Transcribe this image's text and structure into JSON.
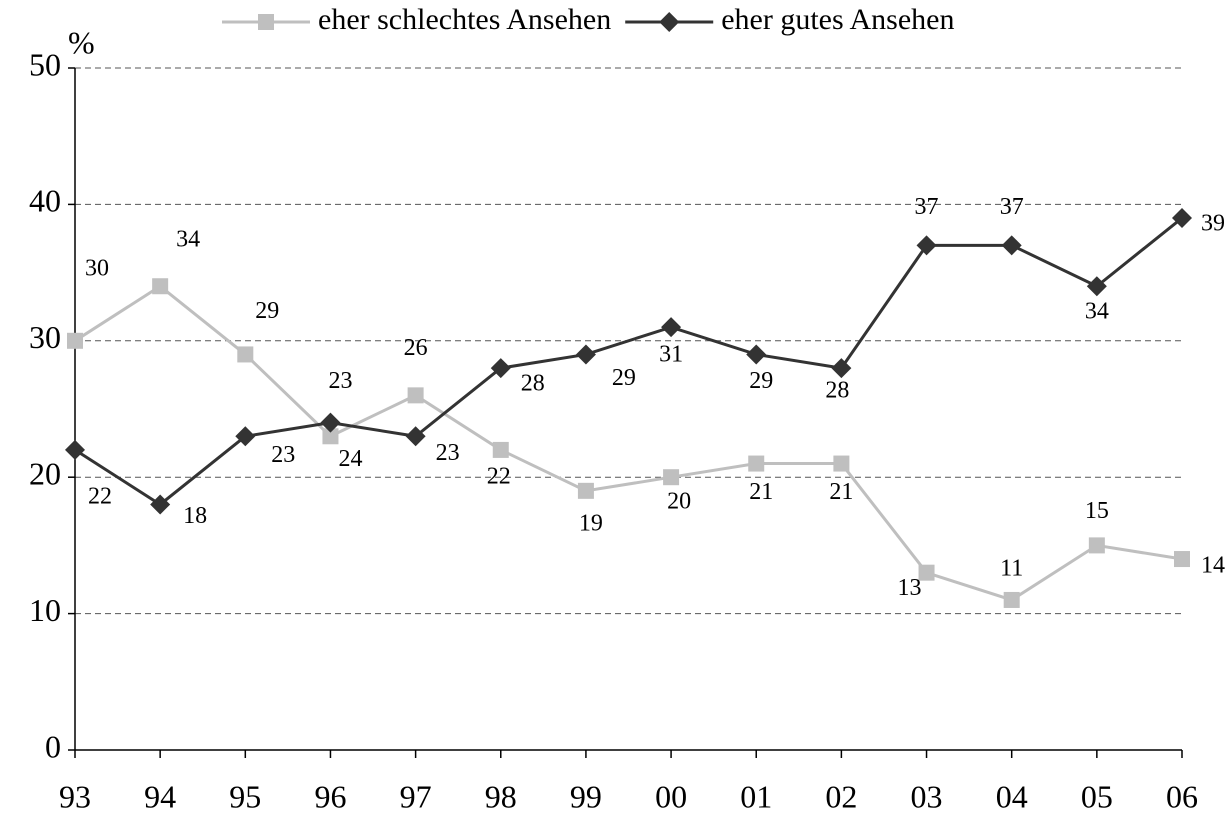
{
  "chart_data": {
    "type": "line",
    "y_label": "%",
    "categories": [
      "93",
      "94",
      "95",
      "96",
      "97",
      "98",
      "99",
      "00",
      "01",
      "02",
      "03",
      "04",
      "05",
      "06"
    ],
    "series": [
      {
        "name": "eher schlechtes Ansehen",
        "color": "#bfbfbf",
        "marker": "square",
        "values": [
          30,
          34,
          29,
          23,
          26,
          22,
          19,
          20,
          21,
          21,
          13,
          11,
          15,
          14
        ]
      },
      {
        "name": "eher gutes Ansehen",
        "color": "#333333",
        "marker": "diamond",
        "values": [
          22,
          18,
          23,
          24,
          23,
          28,
          29,
          31,
          29,
          28,
          37,
          37,
          34,
          39
        ]
      }
    ],
    "ylim": [
      0,
      50
    ],
    "yticks": [
      0,
      10,
      20,
      30,
      40,
      50
    ],
    "grid": true,
    "legend": "top"
  }
}
